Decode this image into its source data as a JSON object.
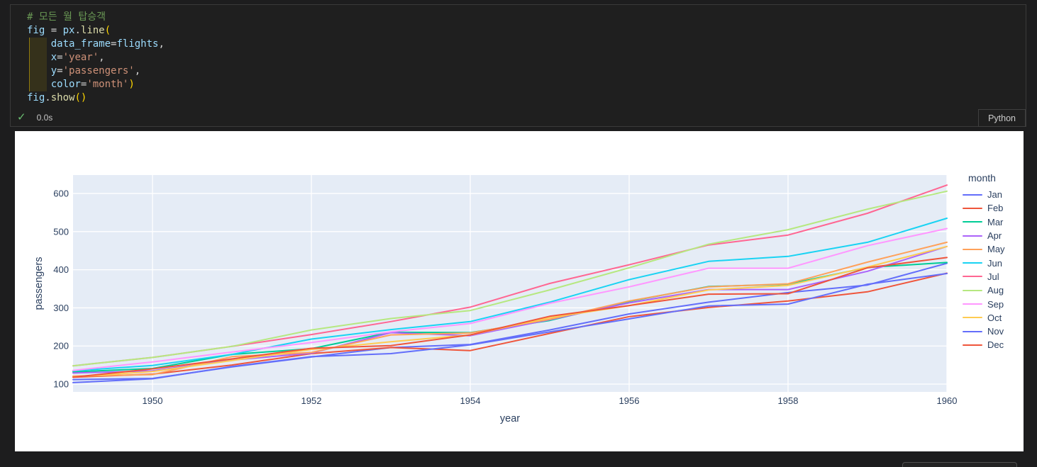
{
  "notebook": {
    "code": {
      "lines": [
        [
          {
            "t": "# 모든 월 탑승객",
            "c": "comment"
          }
        ],
        [
          {
            "t": "fig",
            "c": "var"
          },
          {
            "t": " = ",
            "c": "op"
          },
          {
            "t": "px",
            "c": "var"
          },
          {
            "t": ".",
            "c": "op"
          },
          {
            "t": "line",
            "c": "func"
          },
          {
            "t": "(",
            "c": "br"
          }
        ],
        [
          {
            "t": "    ",
            "c": "op"
          },
          {
            "t": "data_frame",
            "c": "var"
          },
          {
            "t": "=",
            "c": "op"
          },
          {
            "t": "flights",
            "c": "var"
          },
          {
            "t": ",",
            "c": "op"
          }
        ],
        [
          {
            "t": "    ",
            "c": "op"
          },
          {
            "t": "x",
            "c": "var"
          },
          {
            "t": "=",
            "c": "op"
          },
          {
            "t": "'year'",
            "c": "str"
          },
          {
            "t": ",",
            "c": "op"
          }
        ],
        [
          {
            "t": "    ",
            "c": "op"
          },
          {
            "t": "y",
            "c": "var"
          },
          {
            "t": "=",
            "c": "op"
          },
          {
            "t": "'passengers'",
            "c": "str"
          },
          {
            "t": ",",
            "c": "op"
          }
        ],
        [
          {
            "t": "    ",
            "c": "op"
          },
          {
            "t": "color",
            "c": "var"
          },
          {
            "t": "=",
            "c": "op"
          },
          {
            "t": "'month'",
            "c": "str"
          },
          {
            "t": ")",
            "c": "br"
          }
        ],
        [
          {
            "t": "fig",
            "c": "var"
          },
          {
            "t": ".",
            "c": "op"
          },
          {
            "t": "show",
            "c": "func"
          },
          {
            "t": "()",
            "c": "br"
          }
        ]
      ]
    },
    "execution": {
      "status": "success",
      "duration": "0.0s",
      "language": "Python"
    }
  },
  "chart_data": {
    "type": "line",
    "title": "",
    "xlabel": "year",
    "ylabel": "passengers",
    "legend_title": "month",
    "legend_position": "right",
    "grid": true,
    "plot_bg": "#E5ECF6",
    "grid_color": "#FFFFFF",
    "tick_color": "#2a3f5f",
    "xlim": [
      1949,
      1960
    ],
    "ylim": [
      79.6,
      648.4
    ],
    "xticks": [
      1950,
      1952,
      1954,
      1956,
      1958,
      1960
    ],
    "yticks": [
      100,
      200,
      300,
      400,
      500,
      600
    ],
    "x": [
      1949,
      1950,
      1951,
      1952,
      1953,
      1954,
      1955,
      1956,
      1957,
      1958,
      1959,
      1960
    ],
    "series": [
      {
        "name": "Jan",
        "color": "#636EFA",
        "values": [
          112,
          115,
          145,
          171,
          196,
          204,
          242,
          284,
          315,
          340,
          360,
          417
        ]
      },
      {
        "name": "Feb",
        "color": "#EF553B",
        "values": [
          118,
          126,
          150,
          180,
          196,
          188,
          233,
          277,
          301,
          318,
          342,
          391
        ]
      },
      {
        "name": "Mar",
        "color": "#00CC96",
        "values": [
          132,
          141,
          178,
          193,
          236,
          235,
          267,
          317,
          356,
          362,
          406,
          419
        ]
      },
      {
        "name": "Apr",
        "color": "#AB63FA",
        "values": [
          129,
          135,
          163,
          181,
          235,
          227,
          269,
          313,
          348,
          348,
          396,
          461
        ]
      },
      {
        "name": "May",
        "color": "#FFA15A",
        "values": [
          121,
          125,
          172,
          183,
          229,
          234,
          270,
          318,
          355,
          363,
          420,
          472
        ]
      },
      {
        "name": "Jun",
        "color": "#19D3F3",
        "values": [
          135,
          149,
          178,
          218,
          243,
          264,
          315,
          374,
          422,
          435,
          472,
          535
        ]
      },
      {
        "name": "Jul",
        "color": "#FF6692",
        "values": [
          148,
          170,
          199,
          230,
          264,
          302,
          364,
          413,
          465,
          491,
          548,
          622
        ]
      },
      {
        "name": "Aug",
        "color": "#B6E880",
        "values": [
          148,
          170,
          199,
          242,
          272,
          293,
          347,
          405,
          467,
          505,
          559,
          606
        ]
      },
      {
        "name": "Sep",
        "color": "#FF97FF",
        "values": [
          136,
          158,
          184,
          209,
          237,
          259,
          312,
          355,
          404,
          404,
          463,
          508
        ]
      },
      {
        "name": "Oct",
        "color": "#FECB52",
        "values": [
          119,
          133,
          162,
          191,
          211,
          229,
          274,
          306,
          347,
          359,
          407,
          461
        ]
      },
      {
        "name": "Nov",
        "color": "#636EFA",
        "values": [
          104,
          114,
          146,
          172,
          180,
          203,
          237,
          271,
          305,
          310,
          362,
          390
        ]
      },
      {
        "name": "Dec",
        "color": "#EF553B",
        "values": [
          118,
          140,
          166,
          194,
          201,
          229,
          278,
          306,
          336,
          337,
          405,
          432
        ]
      }
    ]
  }
}
